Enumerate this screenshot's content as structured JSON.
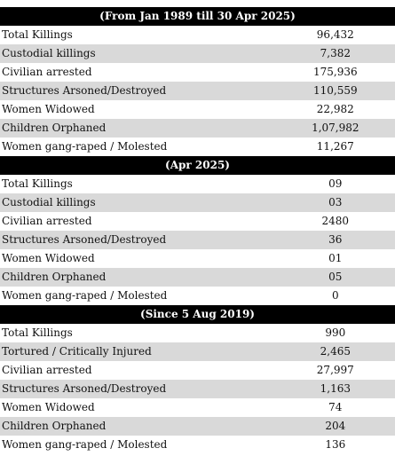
{
  "sections": [
    {
      "header": "(From Jan 1989 till 30 Apr 2025)",
      "rows": [
        [
          "Total Killings",
          "96,432"
        ],
        [
          "Custodial killings",
          "7,382"
        ],
        [
          "Civilian arrested",
          "175,936"
        ],
        [
          "Structures Arsoned/Destroyed",
          "110,559"
        ],
        [
          "Women Widowed",
          "22,982"
        ],
        [
          "Children Orphaned",
          "1,07,982"
        ],
        [
          "Women gang-raped / Molested",
          "11,267"
        ]
      ]
    },
    {
      "header": "(Apr  2025)",
      "rows": [
        [
          "Total Killings",
          "09"
        ],
        [
          "Custodial killings",
          "03"
        ],
        [
          "Civilian arrested",
          "2480"
        ],
        [
          "Structures Arsoned/Destroyed",
          "36"
        ],
        [
          "Women Widowed",
          "01"
        ],
        [
          "Children Orphaned",
          "05"
        ],
        [
          "Women gang-raped / Molested",
          "0"
        ]
      ]
    },
    {
      "header": "(Since 5 Aug 2019)",
      "rows": [
        [
          "Total Killings",
          "990"
        ],
        [
          "Tortured / Critically Injured",
          "2,465"
        ],
        [
          "Civilian arrested",
          "27,997"
        ],
        [
          "Structures Arsoned/Destroyed",
          "1,163"
        ],
        [
          "Women Widowed",
          "74"
        ],
        [
          "Children Orphaned",
          "204"
        ],
        [
          "Women gang-raped / Molested",
          "136"
        ]
      ]
    }
  ]
}
